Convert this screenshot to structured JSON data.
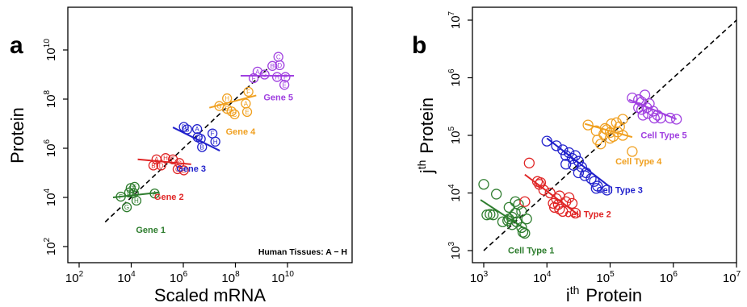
{
  "chart_data": [
    {
      "panel": "a",
      "type": "scatter",
      "xlabel": "Scaled mRNA",
      "ylabel": "Protein",
      "xscale": "log",
      "yscale": "log",
      "xlim": [
        100,
        100000000000.0
      ],
      "ylim": [
        100,
        100000000000.0
      ],
      "x_ticks": [
        {
          "base": "10",
          "exp": "2",
          "v": 2
        },
        {
          "base": "10",
          "exp": "4",
          "v": 4
        },
        {
          "base": "10",
          "exp": "6",
          "v": 6
        },
        {
          "base": "10",
          "exp": "8",
          "v": 8
        },
        {
          "base": "10",
          "exp": "10",
          "v": 10
        }
      ],
      "y_ticks": [
        {
          "base": "10",
          "exp": "2",
          "v": 2
        },
        {
          "base": "10",
          "exp": "4",
          "v": 4
        },
        {
          "base": "10",
          "exp": "6",
          "v": 6
        },
        {
          "base": "10",
          "exp": "8",
          "v": 8
        },
        {
          "base": "10",
          "exp": "10",
          "v": 10
        }
      ],
      "diagonal": [
        [
          3.0,
          3.0
        ],
        [
          9.3,
          9.3
        ]
      ],
      "annotation": "Human Tissues: A − H",
      "series": [
        {
          "name": "Gene 1",
          "color": "#2e7d2e",
          "label_pos": [
            4.75,
            2.55
          ],
          "fit": [
            [
              3.3,
              4.0
            ],
            [
              5.05,
              4.2
            ]
          ],
          "points": [
            {
              "l": "E",
              "x": 4.13,
              "y": 4.43
            },
            {
              "l": "C",
              "x": 3.98,
              "y": 4.38
            },
            {
              "l": "D",
              "x": 3.92,
              "y": 4.2
            },
            {
              "l": "B",
              "x": 4.1,
              "y": 4.18
            },
            {
              "l": "A",
              "x": 4.9,
              "y": 4.16
            },
            {
              "l": "F",
              "x": 3.6,
              "y": 4.03
            },
            {
              "l": "H",
              "x": 4.2,
              "y": 3.87
            },
            {
              "l": "G",
              "x": 3.83,
              "y": 3.6
            }
          ]
        },
        {
          "name": "Gene 2",
          "color": "#e02525",
          "label_pos": [
            5.45,
            3.9
          ],
          "fit": [
            [
              4.25,
              5.55
            ],
            [
              6.3,
              5.35
            ]
          ],
          "points": [
            {
              "l": "A",
              "x": 4.97,
              "y": 5.55
            },
            {
              "l": "H",
              "x": 5.32,
              "y": 5.6
            },
            {
              "l": "B",
              "x": 4.85,
              "y": 5.3
            },
            {
              "l": "D",
              "x": 5.15,
              "y": 5.3
            },
            {
              "l": "F",
              "x": 5.6,
              "y": 5.55
            },
            {
              "l": "G",
              "x": 5.85,
              "y": 5.4
            },
            {
              "l": "C",
              "x": 5.78,
              "y": 5.15
            },
            {
              "l": "E",
              "x": 6.02,
              "y": 5.1
            }
          ]
        },
        {
          "name": "Gene 3",
          "color": "#2222cc",
          "label_pos": [
            6.3,
            5.05
          ],
          "fit": [
            [
              5.6,
              6.85
            ],
            [
              7.4,
              5.9
            ]
          ],
          "points": [
            {
              "l": "D",
              "x": 6.02,
              "y": 6.87
            },
            {
              "l": "B",
              "x": 6.15,
              "y": 6.77
            },
            {
              "l": "A",
              "x": 6.53,
              "y": 6.78
            },
            {
              "l": "C",
              "x": 6.55,
              "y": 6.45
            },
            {
              "l": "F",
              "x": 7.12,
              "y": 6.6
            },
            {
              "l": "E",
              "x": 6.67,
              "y": 6.38
            },
            {
              "l": "H",
              "x": 7.23,
              "y": 6.27
            },
            {
              "l": "B2",
              "x": 6.72,
              "y": 6.05,
              "show": "B"
            }
          ]
        },
        {
          "name": "Gene 4",
          "color": "#f0a020",
          "label_pos": [
            8.2,
            6.55
          ],
          "fit": [
            [
              7.0,
              7.65
            ],
            [
              8.8,
              8.15
            ]
          ],
          "points": [
            {
              "l": "H",
              "x": 7.68,
              "y": 8.03
            },
            {
              "l": "G",
              "x": 7.38,
              "y": 7.72
            },
            {
              "l": "B",
              "x": 7.68,
              "y": 7.6
            },
            {
              "l": "D",
              "x": 7.85,
              "y": 7.5
            },
            {
              "l": "C",
              "x": 7.97,
              "y": 7.38
            },
            {
              "l": "A",
              "x": 8.4,
              "y": 7.82
            },
            {
              "l": "F",
              "x": 8.5,
              "y": 8.3
            },
            {
              "l": "E",
              "x": 8.45,
              "y": 7.48
            }
          ]
        },
        {
          "name": "Gene 5",
          "color": "#a040e0",
          "label_pos": [
            9.65,
            7.95
          ],
          "fit": [
            [
              8.2,
              8.95
            ],
            [
              10.25,
              8.95
            ]
          ],
          "points": [
            {
              "l": "C",
              "x": 9.65,
              "y": 9.72
            },
            {
              "l": "B",
              "x": 9.42,
              "y": 9.35
            },
            {
              "l": "D",
              "x": 9.7,
              "y": 9.38
            },
            {
              "l": "A",
              "x": 8.85,
              "y": 9.12
            },
            {
              "l": "G",
              "x": 9.12,
              "y": 9.0
            },
            {
              "l": "H",
              "x": 9.6,
              "y": 8.9
            },
            {
              "l": "F",
              "x": 8.7,
              "y": 8.85
            },
            {
              "l": "F2",
              "x": 9.92,
              "y": 8.9,
              "show": "F"
            },
            {
              "l": "E",
              "x": 9.88,
              "y": 8.58
            }
          ]
        }
      ]
    },
    {
      "panel": "b",
      "type": "scatter",
      "xlabel_base": "i",
      "xlabel_sup": "th",
      "xlabel_word": "Protein",
      "ylabel_base": "j",
      "ylabel_sup": "th",
      "ylabel_word": "Protein",
      "xscale": "log",
      "yscale": "log",
      "xlim": [
        1000,
        10000000.0
      ],
      "ylim": [
        1000,
        10000000.0
      ],
      "x_ticks": [
        {
          "base": "10",
          "exp": "3",
          "v": 3
        },
        {
          "base": "10",
          "exp": "4",
          "v": 4
        },
        {
          "base": "10",
          "exp": "5",
          "v": 5
        },
        {
          "base": "10",
          "exp": "6",
          "v": 6
        },
        {
          "base": "10",
          "exp": "7",
          "v": 7
        }
      ],
      "y_ticks": [
        {
          "base": "10",
          "exp": "3",
          "v": 3
        },
        {
          "base": "10",
          "exp": "4",
          "v": 4
        },
        {
          "base": "10",
          "exp": "5",
          "v": 5
        },
        {
          "base": "10",
          "exp": "6",
          "v": 6
        },
        {
          "base": "10",
          "exp": "7",
          "v": 7
        }
      ],
      "diagonal": [
        [
          3.0,
          3.0
        ],
        [
          7.0,
          7.0
        ]
      ],
      "series": [
        {
          "name": "Cell Type 1",
          "color": "#2e7d2e",
          "label_pos": [
            3.75,
            2.95
          ],
          "fit": [
            [
              2.95,
              3.88
            ],
            [
              3.65,
              3.38
            ]
          ],
          "points": [
            [
              3.0,
              4.15
            ],
            [
              3.05,
              3.62
            ],
            [
              3.1,
              3.63
            ],
            [
              3.15,
              3.62
            ],
            [
              3.2,
              3.98
            ],
            [
              3.3,
              3.5
            ],
            [
              3.38,
              3.52
            ],
            [
              3.45,
              3.58
            ],
            [
              3.5,
              3.65
            ],
            [
              3.4,
              3.75
            ],
            [
              3.55,
              3.8
            ],
            [
              3.6,
              3.68
            ],
            [
              3.45,
              3.45
            ],
            [
              3.52,
              3.5
            ],
            [
              3.6,
              3.4
            ],
            [
              3.62,
              3.32
            ],
            [
              3.65,
              3.3
            ],
            [
              3.68,
              3.55
            ],
            [
              3.4,
              3.55
            ],
            [
              3.5,
              3.85
            ]
          ]
        },
        {
          "name": "Cell Type 2",
          "color": "#e02525",
          "label_pos": [
            4.65,
            3.58
          ],
          "fit": [
            [
              3.65,
              4.32
            ],
            [
              4.5,
              3.62
            ]
          ],
          "points": [
            [
              3.65,
              3.85
            ],
            [
              3.72,
              4.52
            ],
            [
              3.85,
              4.2
            ],
            [
              3.88,
              4.15
            ],
            [
              3.95,
              4.05
            ],
            [
              4.05,
              4.0
            ],
            [
              4.1,
              3.82
            ],
            [
              4.15,
              3.9
            ],
            [
              4.18,
              3.8
            ],
            [
              4.2,
              3.72
            ],
            [
              4.25,
              3.68
            ],
            [
              4.3,
              3.85
            ],
            [
              4.35,
              3.92
            ],
            [
              4.4,
              3.82
            ],
            [
              4.45,
              3.65
            ],
            [
              4.2,
              3.95
            ],
            [
              4.12,
              3.75
            ],
            [
              3.9,
              4.18
            ]
          ]
        },
        {
          "name": "Cell Type 3",
          "color": "#2222cc",
          "label_pos": [
            5.15,
            4.0
          ],
          "fit": [
            [
              4.0,
              4.95
            ],
            [
              4.98,
              4.12
            ]
          ],
          "points": [
            [
              4.0,
              4.9
            ],
            [
              4.15,
              4.82
            ],
            [
              4.25,
              4.75
            ],
            [
              4.3,
              4.65
            ],
            [
              4.35,
              4.7
            ],
            [
              4.4,
              4.6
            ],
            [
              4.45,
              4.65
            ],
            [
              4.5,
              4.55
            ],
            [
              4.55,
              4.45
            ],
            [
              4.42,
              4.48
            ],
            [
              4.3,
              4.5
            ],
            [
              4.5,
              4.35
            ],
            [
              4.6,
              4.3
            ],
            [
              4.7,
              4.25
            ],
            [
              4.75,
              4.2
            ],
            [
              4.78,
              4.08
            ],
            [
              4.8,
              4.12
            ],
            [
              4.95,
              4.05
            ],
            [
              4.62,
              4.35
            ]
          ]
        },
        {
          "name": "Cell Type 4",
          "color": "#f0a020",
          "label_pos": [
            5.45,
            4.5
          ],
          "fit": [
            [
              4.6,
              5.2
            ],
            [
              5.35,
              4.97
            ]
          ],
          "points": [
            [
              4.65,
              5.18
            ],
            [
              4.78,
              5.08
            ],
            [
              4.8,
              4.92
            ],
            [
              4.9,
              5.02
            ],
            [
              4.95,
              5.1
            ],
            [
              5.0,
              4.95
            ],
            [
              5.02,
              5.2
            ],
            [
              5.1,
              5.22
            ],
            [
              5.15,
              5.15
            ],
            [
              5.2,
              5.28
            ],
            [
              5.0,
              5.05
            ],
            [
              4.85,
              4.85
            ],
            [
              5.05,
              4.98
            ],
            [
              5.12,
              5.06
            ],
            [
              4.92,
              5.12
            ],
            [
              5.2,
              5.0
            ],
            [
              5.35,
              4.72
            ]
          ]
        },
        {
          "name": "Cell Type 5",
          "color": "#a040e0",
          "label_pos": [
            5.85,
            4.95
          ],
          "fit": [
            [
              5.3,
              5.62
            ],
            [
              6.05,
              5.28
            ]
          ],
          "points": [
            [
              5.35,
              5.65
            ],
            [
              5.45,
              5.62
            ],
            [
              5.5,
              5.58
            ],
            [
              5.55,
              5.7
            ],
            [
              5.5,
              5.45
            ],
            [
              5.58,
              5.48
            ],
            [
              5.6,
              5.38
            ],
            [
              5.68,
              5.42
            ],
            [
              5.75,
              5.35
            ],
            [
              5.8,
              5.3
            ],
            [
              5.95,
              5.3
            ],
            [
              6.05,
              5.28
            ],
            [
              5.62,
              5.55
            ],
            [
              5.52,
              5.35
            ],
            [
              5.7,
              5.3
            ],
            [
              5.45,
              5.48
            ]
          ]
        }
      ]
    }
  ]
}
